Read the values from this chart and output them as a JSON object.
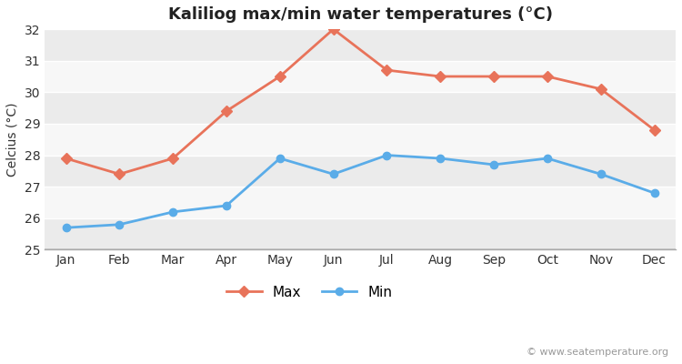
{
  "title": "Kaliliog max/min water temperatures (°C)",
  "xlabel": "",
  "ylabel": "Celcius (°C)",
  "months": [
    "Jan",
    "Feb",
    "Mar",
    "Apr",
    "May",
    "Jun",
    "Jul",
    "Aug",
    "Sep",
    "Oct",
    "Nov",
    "Dec"
  ],
  "max_temps": [
    27.9,
    27.4,
    27.9,
    29.4,
    30.5,
    32.0,
    30.7,
    30.5,
    30.5,
    30.5,
    30.1,
    28.8
  ],
  "min_temps": [
    25.7,
    25.8,
    26.2,
    26.4,
    27.9,
    27.4,
    28.0,
    27.9,
    27.7,
    27.9,
    27.4,
    26.8
  ],
  "max_color": "#e8735a",
  "min_color": "#5aace8",
  "fig_bg_color": "#ffffff",
  "plot_bg_color": "#ffffff",
  "band_color_light": "#ebebeb",
  "band_color_white": "#f7f7f7",
  "bottom_bar_color": "#c8c8c8",
  "ylim": [
    25,
    32
  ],
  "yticks": [
    25,
    26,
    27,
    28,
    29,
    30,
    31,
    32
  ],
  "legend_max": "Max",
  "legend_min": "Min",
  "watermark": "© www.seatemperature.org",
  "title_fontsize": 13,
  "axis_label_fontsize": 10,
  "tick_fontsize": 10,
  "watermark_fontsize": 8,
  "legend_fontsize": 11
}
